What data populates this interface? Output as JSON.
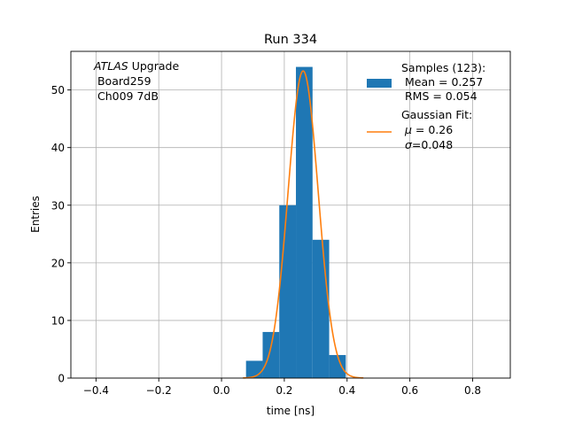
{
  "chart_data": {
    "type": "bar",
    "title": "Run 334",
    "xlabel": "time [ns]",
    "ylabel": "Entries",
    "xlim": [
      -0.48,
      0.92
    ],
    "ylim": [
      0,
      56.7
    ],
    "grid": true,
    "xticks": [
      -0.4,
      -0.2,
      0.0,
      0.2,
      0.4,
      0.6,
      0.8
    ],
    "xtick_labels": [
      "−0.4",
      "−0.2",
      "0.0",
      "0.2",
      "0.4",
      "0.6",
      "0.8"
    ],
    "yticks": [
      0,
      10,
      20,
      30,
      40,
      50
    ],
    "ytick_labels": [
      "0",
      "10",
      "20",
      "30",
      "40",
      "50"
    ],
    "bars": [
      {
        "x0": 0.078,
        "x1": 0.131,
        "value": 3
      },
      {
        "x0": 0.131,
        "x1": 0.184,
        "value": 8
      },
      {
        "x0": 0.184,
        "x1": 0.237,
        "value": 30
      },
      {
        "x0": 0.237,
        "x1": 0.29,
        "value": 54
      },
      {
        "x0": 0.29,
        "x1": 0.343,
        "value": 24
      },
      {
        "x0": 0.343,
        "x1": 0.396,
        "value": 4
      }
    ],
    "fit": {
      "mu": 0.26,
      "sigma": 0.048,
      "amplitude": 53.3
    },
    "colors": {
      "bars": "#1f77b4",
      "fit": "#ff7f0e",
      "grid": "#b0b0b0"
    },
    "annotation": {
      "experiment": "ATLAS",
      "line1_rest": " Upgrade",
      "line2": " Board259",
      "line3": " Ch009 7dB"
    },
    "legend": {
      "placement": "upper-right",
      "samples_line1": "Samples (123):",
      "samples_line2": " Mean = 0.257",
      "samples_line3": " RMS = 0.054",
      "fit_line1": "Gaussian Fit:",
      "fit_line2_sym": "μ",
      "fit_line2_rest": " = 0.26",
      "fit_line3_sym": "σ",
      "fit_line3_rest": "=0.048"
    }
  }
}
